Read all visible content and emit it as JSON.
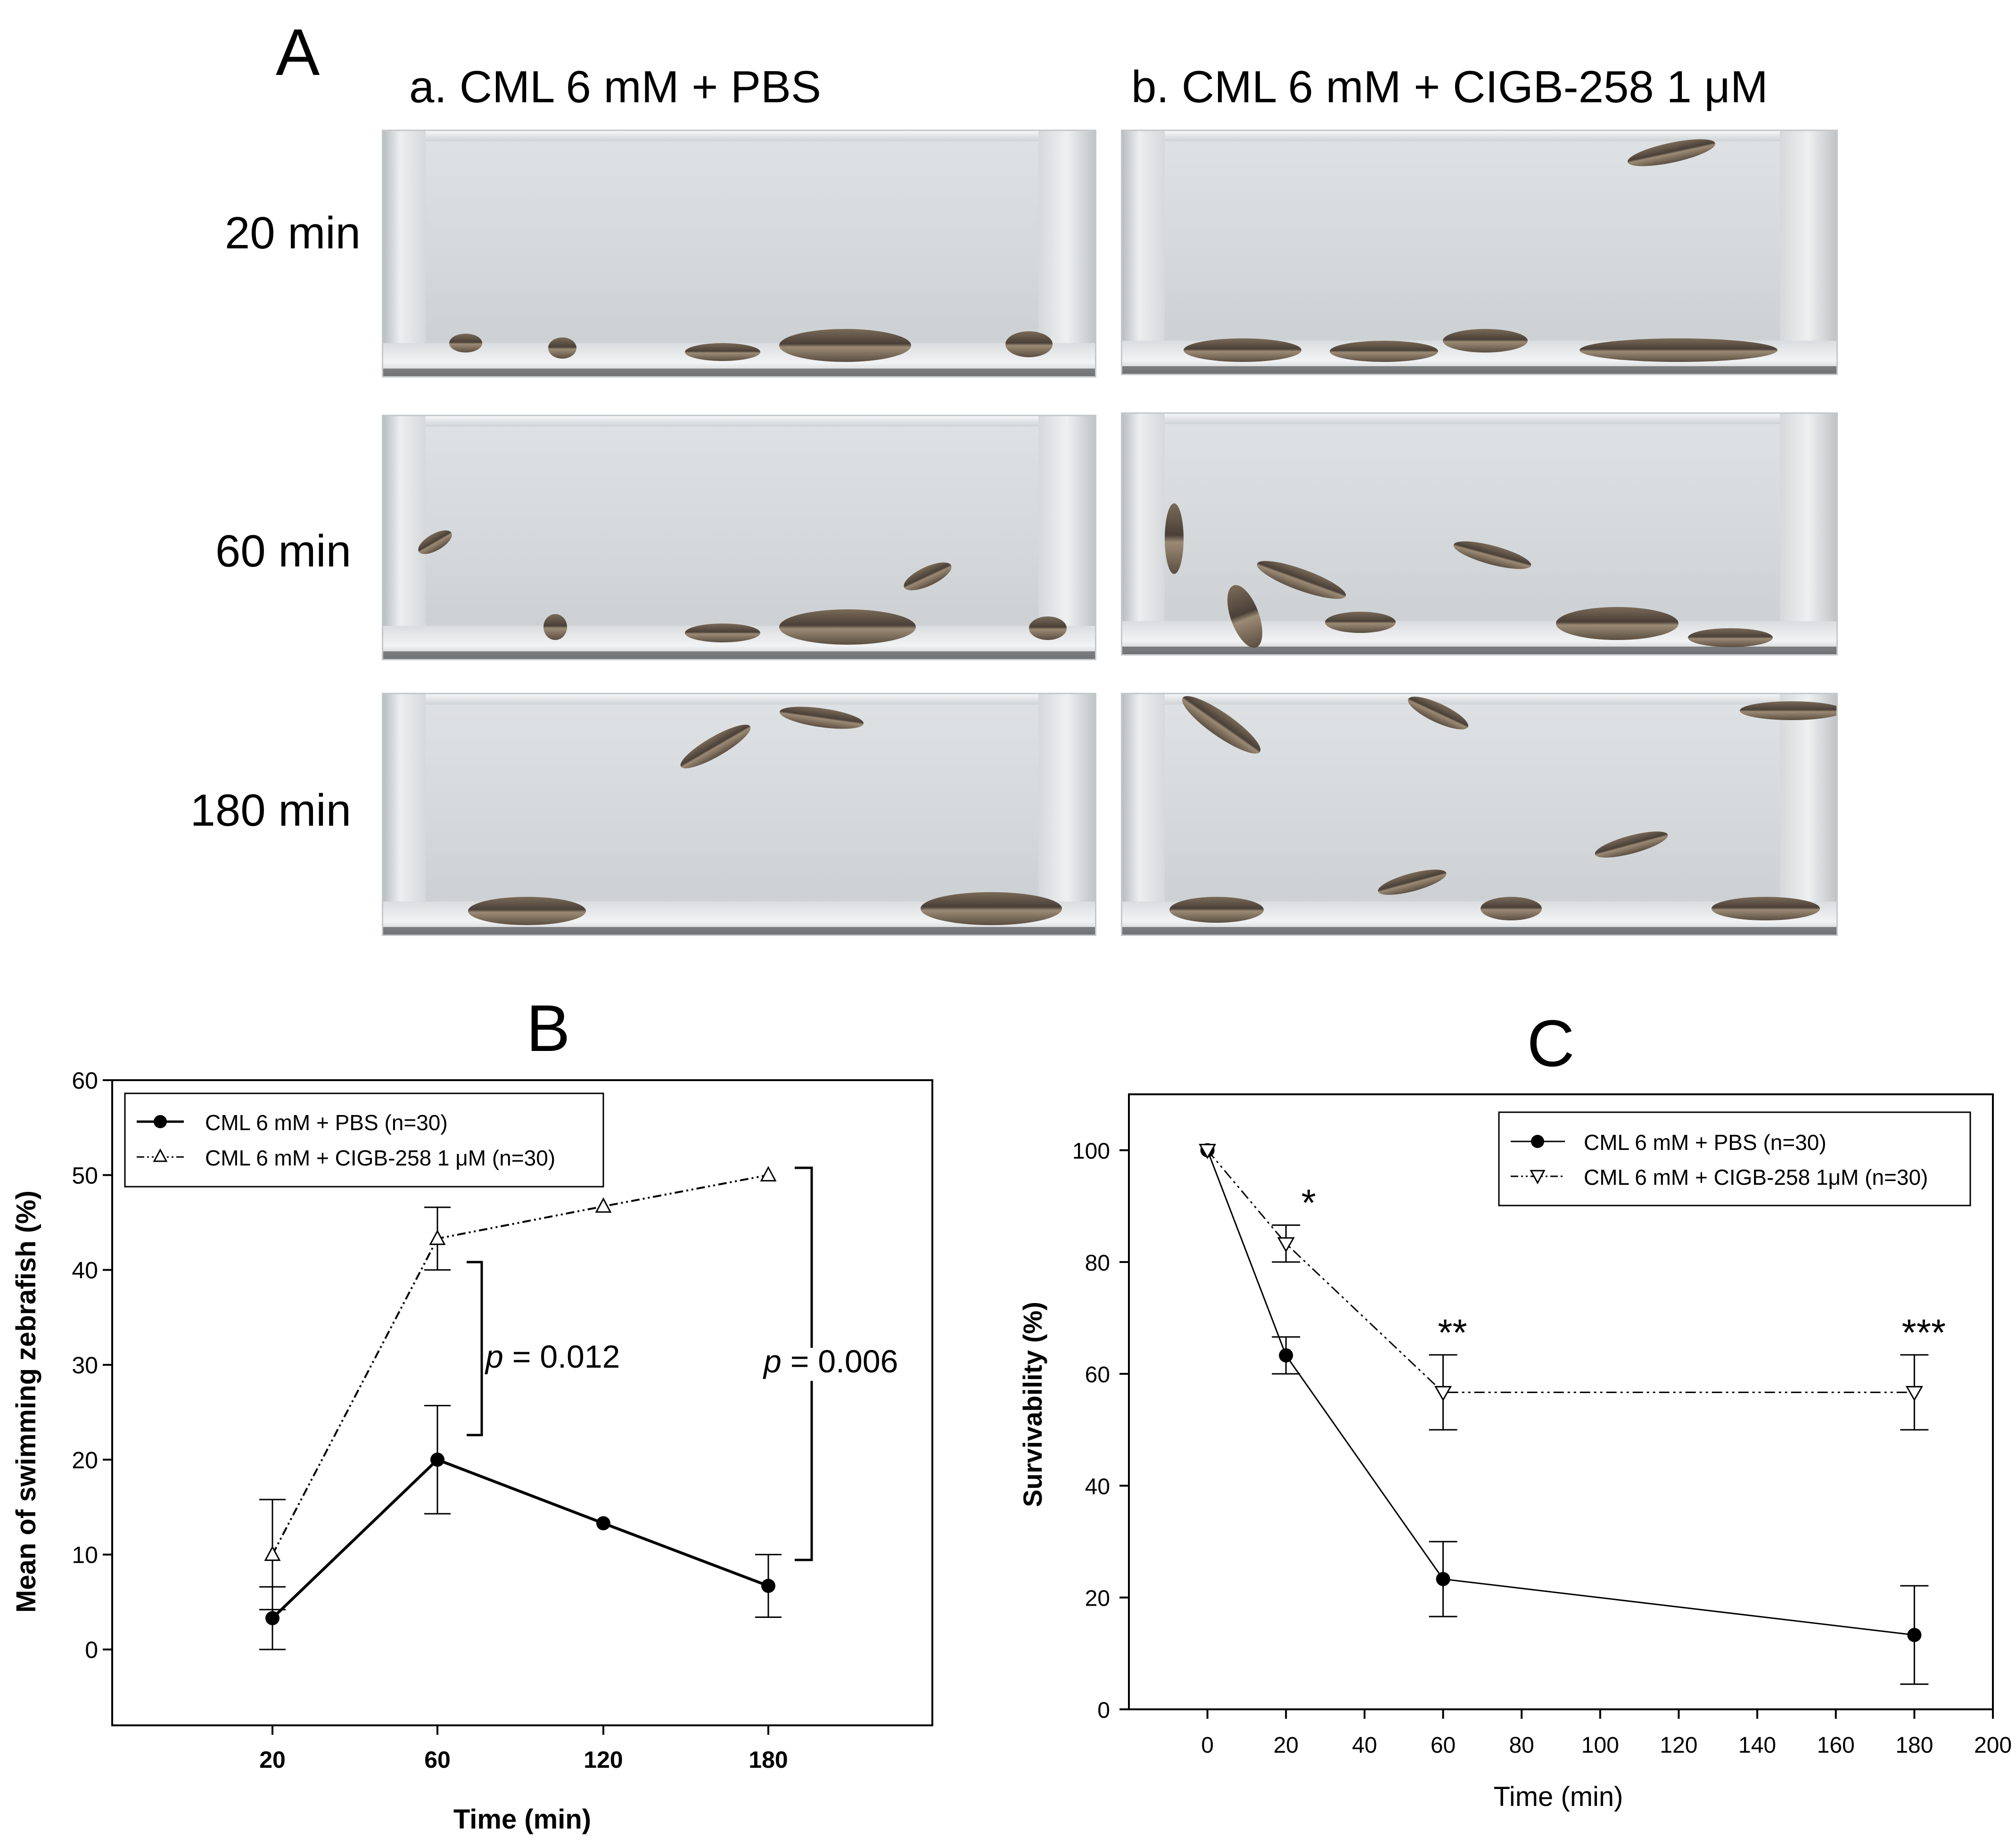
{
  "panel_a": {
    "label": "A",
    "columns": [
      "a. CML 6 mM + PBS",
      "b. CML 6 mM + CIGB-258 1 μM"
    ],
    "rows": [
      "20 min",
      "60 min",
      "180 min"
    ]
  },
  "chart_data": [
    {
      "panel": "B",
      "type": "line",
      "title": "B",
      "xlabel": "Time (min)",
      "ylabel": "Mean of swimming zebrafish (%)",
      "categories": [
        "20",
        "60",
        "120",
        "180"
      ],
      "yticks": [
        "0",
        "10",
        "20",
        "30",
        "40",
        "50",
        "60"
      ],
      "ylim": [
        -8,
        60
      ],
      "series": [
        {
          "name": "CML 6 mM + PBS (n=30)",
          "values": [
            3.3,
            20,
            13.3,
            6.7
          ],
          "errors": [
            3.3,
            5.7,
            0,
            3.3
          ],
          "marker": "filled-circle",
          "line": "solid"
        },
        {
          "name": "CML 6 mM + CIGB-258 1 μM  (n=30)",
          "values": [
            10,
            43.3,
            46.7,
            50
          ],
          "errors": [
            5.8,
            3.3,
            0,
            0
          ],
          "marker": "open-triangle-up",
          "line": "dash-dot-dot"
        }
      ],
      "annotations": [
        {
          "text_p": "p",
          "text_rest": " = 0.012",
          "between": "60"
        },
        {
          "text_p": "p",
          "text_rest": " = 0.006",
          "between": "180"
        }
      ],
      "legend": "top-left"
    },
    {
      "panel": "C",
      "type": "line",
      "title": "C",
      "xlabel": "Time (min)",
      "ylabel": "Survivability (%)",
      "xticks": [
        "0",
        "20",
        "40",
        "60",
        "80",
        "100",
        "120",
        "140",
        "160",
        "180",
        "200"
      ],
      "yticks": [
        "0",
        "20",
        "40",
        "60",
        "80",
        "100"
      ],
      "xlim": [
        -20,
        200
      ],
      "ylim": [
        0,
        110
      ],
      "series": [
        {
          "name": "CML 6 mM + PBS (n=30)",
          "x": [
            0,
            20,
            60,
            180
          ],
          "values": [
            100,
            63.3,
            23.3,
            13.3
          ],
          "errors": [
            0,
            3.3,
            6.7,
            8.8
          ],
          "marker": "filled-circle",
          "line": "solid"
        },
        {
          "name": "CML 6 mM + CIGB-258 1μM (n=30)",
          "x": [
            0,
            20,
            60,
            180
          ],
          "values": [
            100,
            83.3,
            56.7,
            56.7
          ],
          "errors": [
            0,
            3.3,
            6.7,
            6.7
          ],
          "marker": "open-triangle-down",
          "line": "dash-dot-dot"
        }
      ],
      "significance": [
        {
          "x": 20,
          "text": "*"
        },
        {
          "x": 60,
          "text": "**"
        },
        {
          "x": 180,
          "text": "***"
        }
      ],
      "legend": "top-right"
    }
  ]
}
